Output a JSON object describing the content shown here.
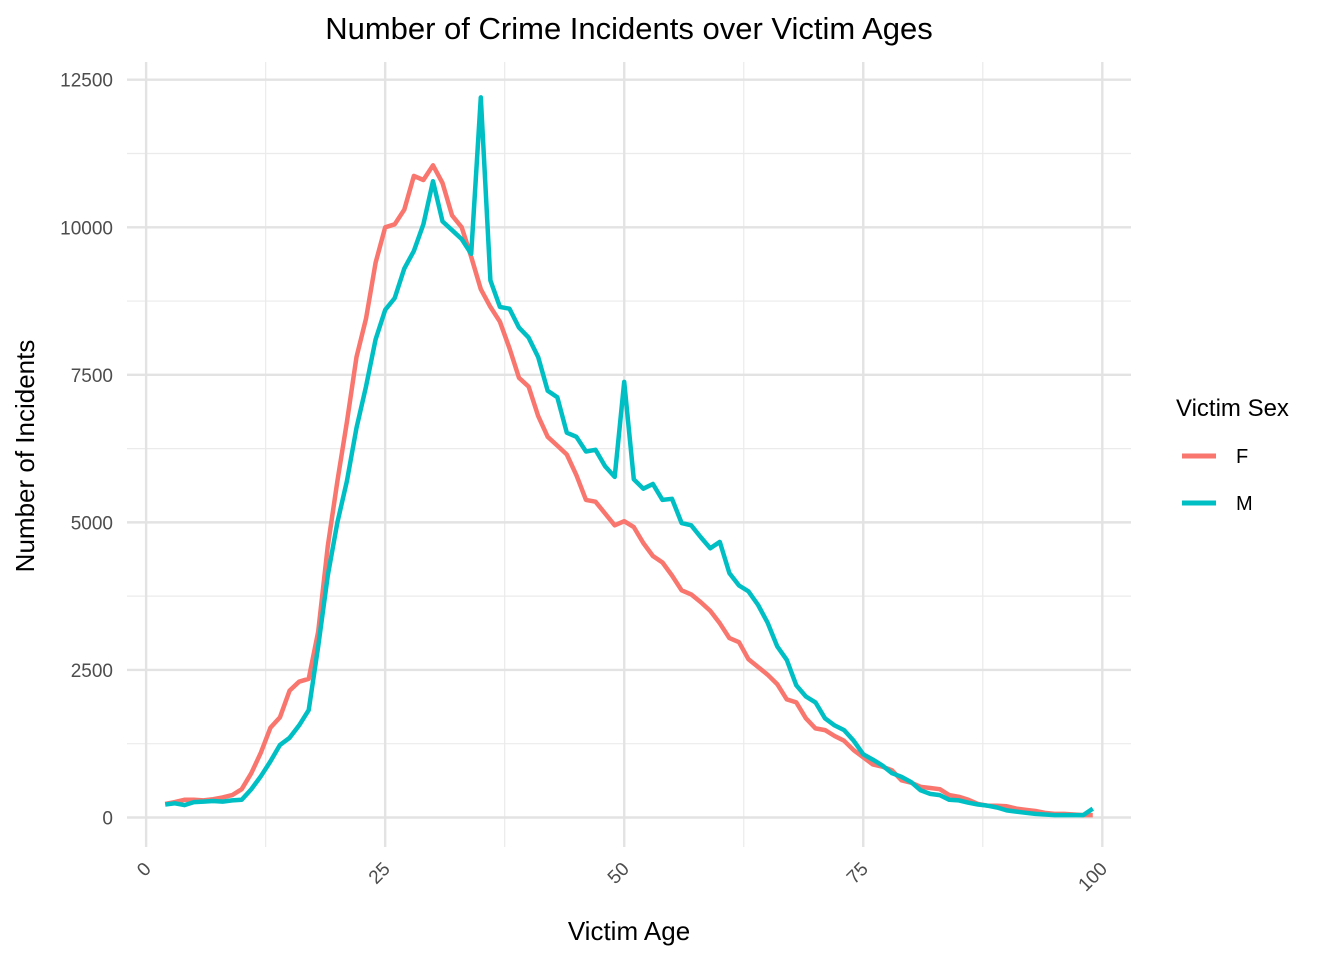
{
  "chart_data": {
    "type": "line",
    "title": "Number of Crime Incidents over Victim Ages",
    "xlabel": "Victim Age",
    "ylabel": "Number of Incidents",
    "xlim": [
      -2,
      103
    ],
    "ylim": [
      -500,
      12800
    ],
    "x_ticks": [
      0,
      25,
      50,
      75,
      100
    ],
    "x_tick_labels": [
      "0",
      "25",
      "50",
      "75",
      "100"
    ],
    "x_tick_rotation": -45,
    "y_ticks": [
      0,
      2500,
      5000,
      7500,
      10000,
      12500
    ],
    "y_tick_labels": [
      "0",
      "2500",
      "5000",
      "7500",
      "10000",
      "12500"
    ],
    "grid": true,
    "legend": {
      "title": "Victim Sex",
      "position": "right"
    },
    "x": [
      2,
      3,
      4,
      5,
      6,
      7,
      8,
      9,
      10,
      11,
      12,
      13,
      14,
      15,
      16,
      17,
      18,
      19,
      20,
      21,
      22,
      23,
      24,
      25,
      26,
      27,
      28,
      29,
      30,
      31,
      32,
      33,
      34,
      35,
      36,
      37,
      38,
      39,
      40,
      41,
      42,
      43,
      44,
      45,
      46,
      47,
      48,
      49,
      50,
      51,
      52,
      53,
      54,
      55,
      56,
      57,
      58,
      59,
      60,
      61,
      62,
      63,
      64,
      65,
      66,
      67,
      68,
      69,
      70,
      71,
      72,
      73,
      74,
      75,
      76,
      77,
      78,
      79,
      80,
      81,
      82,
      83,
      84,
      85,
      86,
      87,
      88,
      89,
      90,
      91,
      92,
      93,
      94,
      95,
      96,
      97,
      98,
      99
    ],
    "series": [
      {
        "name": "F",
        "color": "#F8766D",
        "values": [
          230,
          260,
          300,
          300,
          290,
          310,
          340,
          380,
          480,
          750,
          1100,
          1520,
          1700,
          2150,
          2300,
          2350,
          3150,
          4600,
          5700,
          6700,
          7800,
          8450,
          9400,
          10000,
          10050,
          10300,
          10870,
          10800,
          11050,
          10750,
          10200,
          10000,
          9500,
          8950,
          8650,
          8400,
          7950,
          7450,
          7300,
          6800,
          6450,
          6300,
          6150,
          5800,
          5380,
          5350,
          5150,
          4950,
          5020,
          4920,
          4650,
          4430,
          4320,
          4100,
          3850,
          3780,
          3650,
          3500,
          3290,
          3040,
          2970,
          2680,
          2550,
          2420,
          2260,
          2000,
          1950,
          1680,
          1510,
          1480,
          1380,
          1300,
          1140,
          1020,
          900,
          860,
          800,
          630,
          590,
          520,
          500,
          480,
          380,
          350,
          300,
          230,
          200,
          200,
          190,
          150,
          130,
          110,
          80,
          60,
          60,
          50,
          40,
          40
        ]
      },
      {
        "name": "M",
        "color": "#00BFC4",
        "values": [
          220,
          240,
          210,
          260,
          270,
          280,
          270,
          290,
          300,
          480,
          700,
          950,
          1230,
          1350,
          1560,
          1820,
          2900,
          4100,
          5000,
          5700,
          6600,
          7300,
          8100,
          8600,
          8800,
          9300,
          9600,
          10050,
          10780,
          10100,
          9950,
          9800,
          9550,
          12200,
          9100,
          8650,
          8620,
          8300,
          8130,
          7800,
          7230,
          7120,
          6520,
          6450,
          6200,
          6230,
          5950,
          5770,
          7380,
          5730,
          5570,
          5650,
          5380,
          5400,
          4990,
          4950,
          4750,
          4560,
          4670,
          4140,
          3930,
          3830,
          3600,
          3300,
          2900,
          2670,
          2240,
          2050,
          1950,
          1680,
          1560,
          1480,
          1300,
          1070,
          980,
          880,
          750,
          690,
          600,
          460,
          400,
          380,
          300,
          290,
          250,
          220,
          200,
          170,
          120,
          100,
          80,
          60,
          50,
          40,
          40,
          40,
          40,
          150
        ]
      }
    ]
  }
}
